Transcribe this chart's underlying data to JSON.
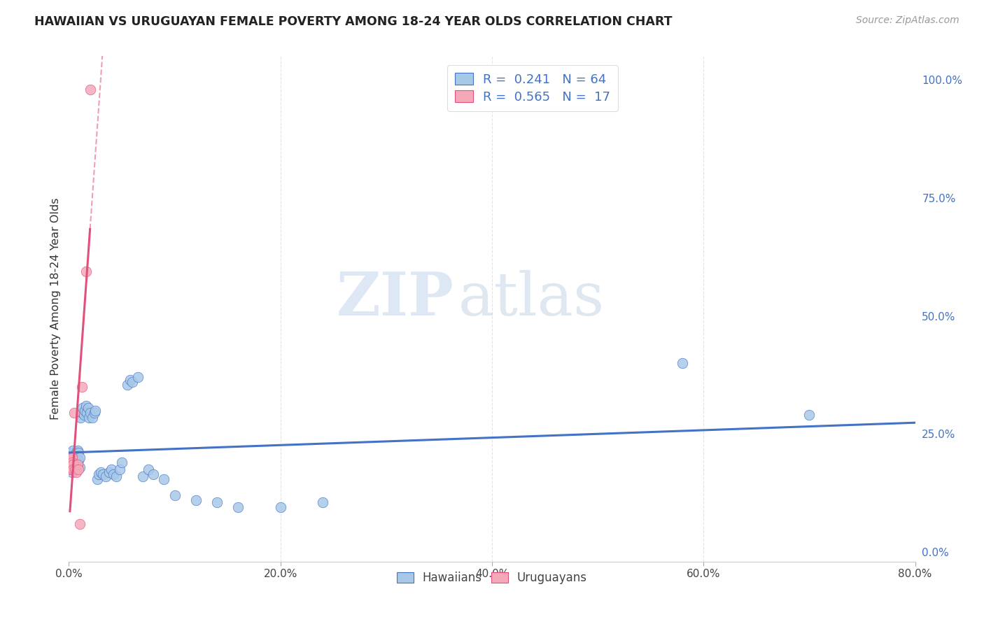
{
  "title": "HAWAIIAN VS URUGUAYAN FEMALE POVERTY AMONG 18-24 YEAR OLDS CORRELATION CHART",
  "source": "Source: ZipAtlas.com",
  "ylabel": "Female Poverty Among 18-24 Year Olds",
  "xlim": [
    0.0,
    0.8
  ],
  "ylim": [
    -0.02,
    1.05
  ],
  "xtick_labels": [
    "0.0%",
    "",
    "20.0%",
    "",
    "40.0%",
    "",
    "60.0%",
    "",
    "80.0%"
  ],
  "xtick_vals": [
    0.0,
    0.1,
    0.2,
    0.3,
    0.4,
    0.5,
    0.6,
    0.7,
    0.8
  ],
  "ytick_labels_right": [
    "100.0%",
    "75.0%",
    "50.0%",
    "25.0%",
    "0.0%"
  ],
  "ytick_vals": [
    1.0,
    0.75,
    0.5,
    0.25,
    0.0
  ],
  "hawaiians_R": 0.241,
  "hawaiians_N": 64,
  "uruguayans_R": 0.565,
  "uruguayans_N": 17,
  "hawaiian_color": "#a8c8e8",
  "uruguayan_color": "#f4a8b8",
  "trend_hawaiian_color": "#4472c4",
  "trend_uruguayan_color": "#e0507a",
  "background_color": "#ffffff",
  "grid_color": "#dde4f0",
  "hawaiians_x": [
    0.001,
    0.001,
    0.002,
    0.002,
    0.003,
    0.003,
    0.003,
    0.004,
    0.004,
    0.004,
    0.005,
    0.005,
    0.005,
    0.006,
    0.006,
    0.007,
    0.007,
    0.007,
    0.008,
    0.008,
    0.009,
    0.009,
    0.01,
    0.01,
    0.011,
    0.012,
    0.013,
    0.014,
    0.015,
    0.016,
    0.017,
    0.018,
    0.019,
    0.02,
    0.022,
    0.024,
    0.025,
    0.027,
    0.028,
    0.03,
    0.032,
    0.035,
    0.038,
    0.04,
    0.042,
    0.045,
    0.048,
    0.05,
    0.055,
    0.058,
    0.06,
    0.065,
    0.07,
    0.075,
    0.08,
    0.09,
    0.1,
    0.12,
    0.14,
    0.16,
    0.2,
    0.24,
    0.58,
    0.7
  ],
  "hawaiians_y": [
    0.2,
    0.19,
    0.175,
    0.21,
    0.185,
    0.195,
    0.17,
    0.2,
    0.215,
    0.185,
    0.19,
    0.175,
    0.205,
    0.2,
    0.185,
    0.175,
    0.19,
    0.21,
    0.195,
    0.215,
    0.21,
    0.195,
    0.2,
    0.18,
    0.285,
    0.295,
    0.305,
    0.29,
    0.3,
    0.31,
    0.295,
    0.305,
    0.285,
    0.295,
    0.285,
    0.295,
    0.3,
    0.155,
    0.165,
    0.17,
    0.165,
    0.16,
    0.17,
    0.175,
    0.165,
    0.16,
    0.175,
    0.19,
    0.355,
    0.365,
    0.36,
    0.37,
    0.16,
    0.175,
    0.165,
    0.155,
    0.12,
    0.11,
    0.105,
    0.095,
    0.095,
    0.105,
    0.4,
    0.29
  ],
  "uruguayans_x": [
    0.001,
    0.001,
    0.002,
    0.002,
    0.003,
    0.003,
    0.004,
    0.004,
    0.005,
    0.006,
    0.007,
    0.008,
    0.009,
    0.01,
    0.012,
    0.016,
    0.02
  ],
  "uruguayans_y": [
    0.195,
    0.185,
    0.2,
    0.175,
    0.2,
    0.19,
    0.185,
    0.175,
    0.295,
    0.175,
    0.17,
    0.185,
    0.175,
    0.06,
    0.35,
    0.595,
    0.98
  ],
  "watermark_zip": "ZIP",
  "watermark_atlas": "atlas"
}
